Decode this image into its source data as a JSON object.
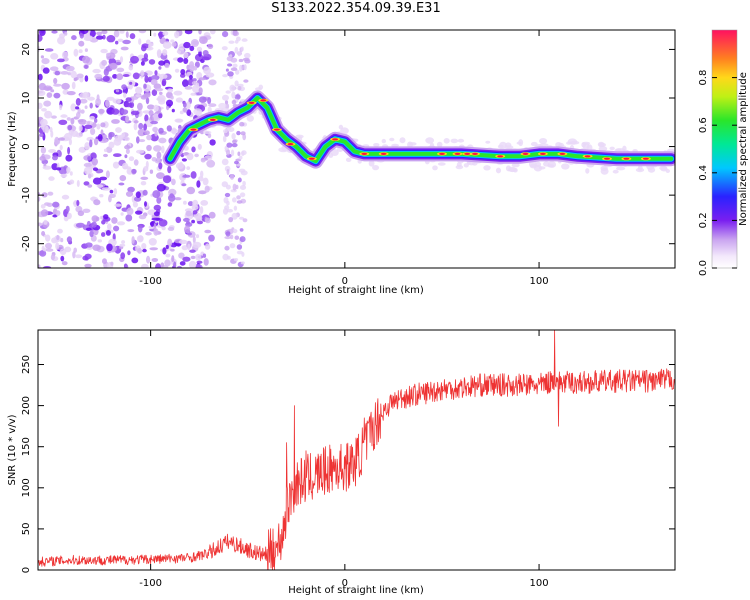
{
  "title": "S133.2022.354.09.39.E31",
  "chart_data": [
    {
      "type": "heatmap",
      "xlabel": "Height of straight line (km)",
      "ylabel": "Frequency (Hz)",
      "xlim": [
        -158,
        170
      ],
      "ylim": [
        -25,
        24
      ],
      "xticks": [
        -100,
        0,
        100
      ],
      "yticks": [
        -20,
        -10,
        0,
        10,
        20
      ],
      "colorbar": {
        "label": "Normalized spectral amplitude",
        "range": [
          0,
          1
        ],
        "ticks": [
          "0.0",
          "0.2",
          "0.4",
          "0.6",
          "0.8"
        ]
      },
      "ridge": {
        "x": [
          -90,
          -85,
          -80,
          -75,
          -70,
          -65,
          -60,
          -55,
          -50,
          -45,
          -40,
          -35,
          -30,
          -25,
          -20,
          -15,
          -10,
          -5,
          0,
          5,
          10,
          20,
          40,
          60,
          80,
          90,
          100,
          110,
          120,
          140,
          160,
          168
        ],
        "y": [
          -2.5,
          1,
          3.5,
          4.5,
          5.5,
          6,
          5.5,
          7,
          8,
          10,
          8,
          3.5,
          1.5,
          0,
          -2,
          -3,
          0,
          1.5,
          1,
          -1,
          -1.5,
          -1.5,
          -1.5,
          -1.5,
          -2,
          -2,
          -1.5,
          -1.5,
          -2,
          -2.5,
          -2.5,
          -2.5
        ]
      }
    },
    {
      "type": "line",
      "xlabel": "Height of straight line (km)",
      "ylabel": "SNR (10 * v/v)",
      "xlim": [
        -158,
        170
      ],
      "ylim": [
        0,
        292
      ],
      "xticks": [
        -100,
        0,
        100
      ],
      "yticks": [
        0,
        50,
        100,
        150,
        200,
        250
      ],
      "color": "#ee3333",
      "series": [
        {
          "x": [
            -158,
            -140,
            -120,
            -100,
            -80,
            -70,
            -65,
            -60,
            -55,
            -50,
            -45,
            -40,
            -35,
            -32,
            -30,
            -28,
            -25,
            -20,
            -15,
            -10,
            -5,
            0,
            5,
            10,
            15,
            20,
            25,
            30,
            40,
            50,
            60,
            70,
            80,
            90,
            100,
            105,
            108,
            110,
            120,
            140,
            160,
            170
          ],
          "y": [
            10,
            12,
            12,
            13,
            15,
            20,
            28,
            35,
            30,
            25,
            20,
            18,
            25,
            45,
            70,
            90,
            105,
            110,
            115,
            120,
            125,
            125,
            130,
            150,
            175,
            195,
            205,
            210,
            215,
            220,
            222,
            225,
            225,
            225,
            225,
            228,
            232,
            228,
            228,
            230,
            230,
            232
          ]
        }
      ],
      "spikes": [
        {
          "x": -37,
          "y": 50
        },
        {
          "x": -30,
          "y": 155
        },
        {
          "x": -26,
          "y": 200
        },
        {
          "x": -20,
          "y": 145
        },
        {
          "x": -10,
          "y": 150
        },
        {
          "x": 10,
          "y": 185
        },
        {
          "x": 108,
          "y": 292
        },
        {
          "x": 110,
          "y": 175
        }
      ]
    }
  ]
}
